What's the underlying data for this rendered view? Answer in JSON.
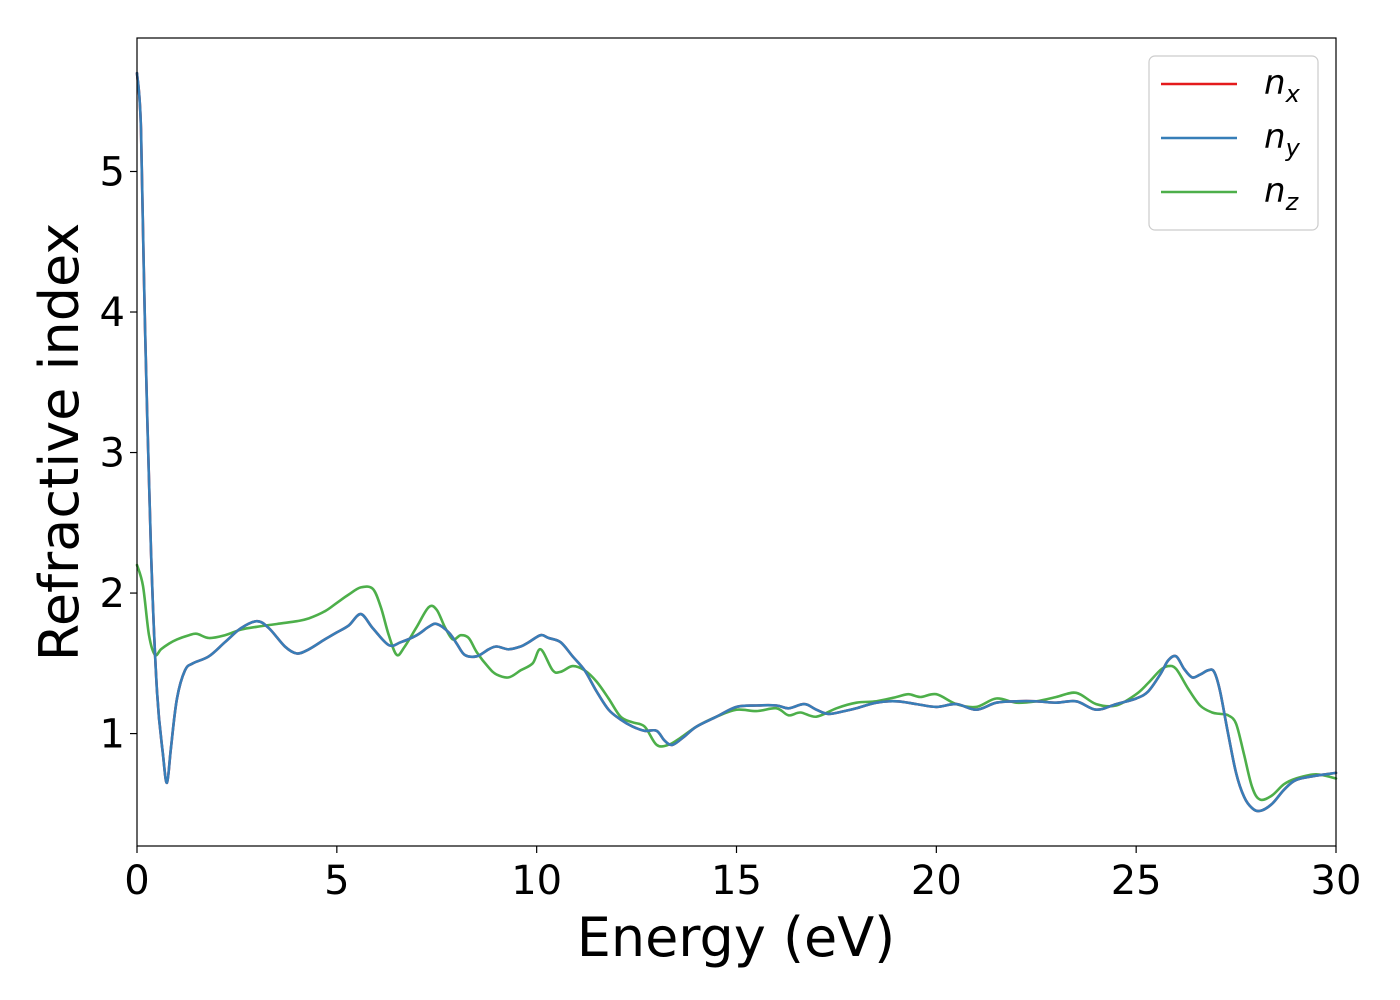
{
  "chart_data": {
    "type": "line",
    "xlabel": "Energy (eV)",
    "ylabel": "Refractive index",
    "xlim": [
      0,
      30
    ],
    "ylim": [
      0.2,
      5.95
    ],
    "xticks": [
      0,
      5,
      10,
      15,
      20,
      25,
      30
    ],
    "yticks": [
      1,
      2,
      3,
      4,
      5
    ],
    "grid": false,
    "legend_position": "top-right",
    "series": [
      {
        "name": "n_x",
        "label_base": "n",
        "label_sub": "x",
        "color": "#e41a1c",
        "x": [
          0,
          0.1,
          0.2,
          0.35,
          0.5,
          0.65,
          0.75,
          0.85,
          1.0,
          1.2,
          1.4,
          1.8,
          2.2,
          2.6,
          3.0,
          3.3,
          3.7,
          4.0,
          4.3,
          4.7,
          5.0,
          5.3,
          5.6,
          5.9,
          6.3,
          6.6,
          7.0,
          7.3,
          7.5,
          7.8,
          8.0,
          8.2,
          8.5,
          8.8,
          9.0,
          9.3,
          9.6,
          9.8,
          10.1,
          10.3,
          10.6,
          10.9,
          11.2,
          11.5,
          11.8,
          12.1,
          12.4,
          12.7,
          13.0,
          13.2,
          13.4,
          13.7,
          14.0,
          14.5,
          15.0,
          15.5,
          16.0,
          16.3,
          16.7,
          17.0,
          17.3,
          17.7,
          18.0,
          18.5,
          19.0,
          19.5,
          20.0,
          20.5,
          21.0,
          21.5,
          22.0,
          22.5,
          23.0,
          23.5,
          24.0,
          24.5,
          25.0,
          25.3,
          25.6,
          25.8,
          26.0,
          26.2,
          26.4,
          26.6,
          26.8,
          26.95,
          27.1,
          27.3,
          27.5,
          27.7,
          27.9,
          28.1,
          28.4,
          28.7,
          29.0,
          29.5,
          30.0
        ],
        "y": [
          5.7,
          5.3,
          3.9,
          2.3,
          1.3,
          0.85,
          0.65,
          0.9,
          1.25,
          1.45,
          1.5,
          1.55,
          1.65,
          1.75,
          1.8,
          1.75,
          1.62,
          1.57,
          1.6,
          1.67,
          1.72,
          1.77,
          1.85,
          1.75,
          1.63,
          1.65,
          1.7,
          1.76,
          1.78,
          1.72,
          1.64,
          1.56,
          1.55,
          1.6,
          1.62,
          1.6,
          1.62,
          1.65,
          1.7,
          1.68,
          1.65,
          1.55,
          1.45,
          1.3,
          1.17,
          1.1,
          1.05,
          1.02,
          1.02,
          0.95,
          0.92,
          0.98,
          1.05,
          1.12,
          1.19,
          1.2,
          1.2,
          1.18,
          1.21,
          1.17,
          1.14,
          1.16,
          1.18,
          1.22,
          1.23,
          1.21,
          1.19,
          1.21,
          1.17,
          1.22,
          1.23,
          1.23,
          1.22,
          1.23,
          1.17,
          1.21,
          1.25,
          1.3,
          1.42,
          1.52,
          1.55,
          1.46,
          1.4,
          1.42,
          1.45,
          1.44,
          1.3,
          1.0,
          0.72,
          0.55,
          0.47,
          0.45,
          0.5,
          0.6,
          0.67,
          0.7,
          0.72
        ]
      },
      {
        "name": "n_y",
        "label_base": "n",
        "label_sub": "y",
        "color": "#377eb8",
        "x": [
          0,
          0.1,
          0.2,
          0.35,
          0.5,
          0.65,
          0.75,
          0.85,
          1.0,
          1.2,
          1.4,
          1.8,
          2.2,
          2.6,
          3.0,
          3.3,
          3.7,
          4.0,
          4.3,
          4.7,
          5.0,
          5.3,
          5.6,
          5.9,
          6.3,
          6.6,
          7.0,
          7.3,
          7.5,
          7.8,
          8.0,
          8.2,
          8.5,
          8.8,
          9.0,
          9.3,
          9.6,
          9.8,
          10.1,
          10.3,
          10.6,
          10.9,
          11.2,
          11.5,
          11.8,
          12.1,
          12.4,
          12.7,
          13.0,
          13.2,
          13.4,
          13.7,
          14.0,
          14.5,
          15.0,
          15.5,
          16.0,
          16.3,
          16.7,
          17.0,
          17.3,
          17.7,
          18.0,
          18.5,
          19.0,
          19.5,
          20.0,
          20.5,
          21.0,
          21.5,
          22.0,
          22.5,
          23.0,
          23.5,
          24.0,
          24.5,
          25.0,
          25.3,
          25.6,
          25.8,
          26.0,
          26.2,
          26.4,
          26.6,
          26.8,
          26.95,
          27.1,
          27.3,
          27.5,
          27.7,
          27.9,
          28.1,
          28.4,
          28.7,
          29.0,
          29.5,
          30.0
        ],
        "y": [
          5.7,
          5.3,
          3.9,
          2.3,
          1.3,
          0.85,
          0.65,
          0.9,
          1.25,
          1.45,
          1.5,
          1.55,
          1.65,
          1.75,
          1.8,
          1.75,
          1.62,
          1.57,
          1.6,
          1.67,
          1.72,
          1.77,
          1.85,
          1.75,
          1.63,
          1.65,
          1.7,
          1.76,
          1.78,
          1.72,
          1.64,
          1.56,
          1.55,
          1.6,
          1.62,
          1.6,
          1.62,
          1.65,
          1.7,
          1.68,
          1.65,
          1.55,
          1.45,
          1.3,
          1.17,
          1.1,
          1.05,
          1.02,
          1.02,
          0.95,
          0.92,
          0.98,
          1.05,
          1.12,
          1.19,
          1.2,
          1.2,
          1.18,
          1.21,
          1.17,
          1.14,
          1.16,
          1.18,
          1.22,
          1.23,
          1.21,
          1.19,
          1.21,
          1.17,
          1.22,
          1.23,
          1.23,
          1.22,
          1.23,
          1.17,
          1.21,
          1.25,
          1.3,
          1.42,
          1.52,
          1.55,
          1.46,
          1.4,
          1.42,
          1.45,
          1.44,
          1.3,
          1.0,
          0.72,
          0.55,
          0.47,
          0.45,
          0.5,
          0.6,
          0.67,
          0.7,
          0.72
        ]
      },
      {
        "name": "n_z",
        "label_base": "n",
        "label_sub": "z",
        "color": "#4daf4a",
        "x": [
          0,
          0.15,
          0.3,
          0.45,
          0.6,
          0.8,
          1.0,
          1.3,
          1.5,
          1.8,
          2.2,
          2.6,
          3.0,
          3.5,
          4.0,
          4.3,
          4.7,
          5.0,
          5.3,
          5.6,
          5.9,
          6.1,
          6.3,
          6.5,
          6.7,
          7.0,
          7.3,
          7.5,
          7.7,
          7.9,
          8.1,
          8.3,
          8.5,
          8.8,
          9.0,
          9.3,
          9.6,
          9.9,
          10.1,
          10.4,
          10.6,
          10.9,
          11.2,
          11.5,
          11.8,
          12.1,
          12.4,
          12.7,
          13.0,
          13.3,
          13.6,
          14.0,
          14.5,
          15.0,
          15.5,
          16.0,
          16.3,
          16.6,
          17.0,
          17.5,
          18.0,
          18.5,
          19.0,
          19.3,
          19.6,
          20.0,
          20.5,
          21.0,
          21.5,
          22.0,
          22.5,
          23.0,
          23.5,
          24.0,
          24.5,
          25.0,
          25.3,
          25.6,
          25.8,
          26.0,
          26.3,
          26.6,
          26.9,
          27.1,
          27.3,
          27.5,
          27.7,
          27.9,
          28.1,
          28.4,
          28.7,
          29.0,
          29.5,
          30.0
        ],
        "y": [
          2.2,
          2.05,
          1.7,
          1.56,
          1.6,
          1.64,
          1.67,
          1.7,
          1.71,
          1.68,
          1.7,
          1.74,
          1.76,
          1.78,
          1.8,
          1.82,
          1.87,
          1.93,
          1.99,
          2.04,
          2.03,
          1.9,
          1.7,
          1.56,
          1.62,
          1.76,
          1.9,
          1.88,
          1.76,
          1.67,
          1.7,
          1.68,
          1.58,
          1.47,
          1.42,
          1.4,
          1.45,
          1.5,
          1.6,
          1.45,
          1.44,
          1.48,
          1.45,
          1.37,
          1.25,
          1.12,
          1.08,
          1.05,
          0.92,
          0.92,
          0.97,
          1.05,
          1.12,
          1.17,
          1.16,
          1.18,
          1.13,
          1.15,
          1.12,
          1.18,
          1.22,
          1.23,
          1.26,
          1.28,
          1.26,
          1.28,
          1.21,
          1.19,
          1.25,
          1.22,
          1.23,
          1.26,
          1.29,
          1.21,
          1.2,
          1.28,
          1.36,
          1.45,
          1.48,
          1.46,
          1.32,
          1.2,
          1.15,
          1.14,
          1.13,
          1.07,
          0.85,
          0.62,
          0.53,
          0.56,
          0.64,
          0.68,
          0.71,
          0.68
        ]
      }
    ]
  }
}
